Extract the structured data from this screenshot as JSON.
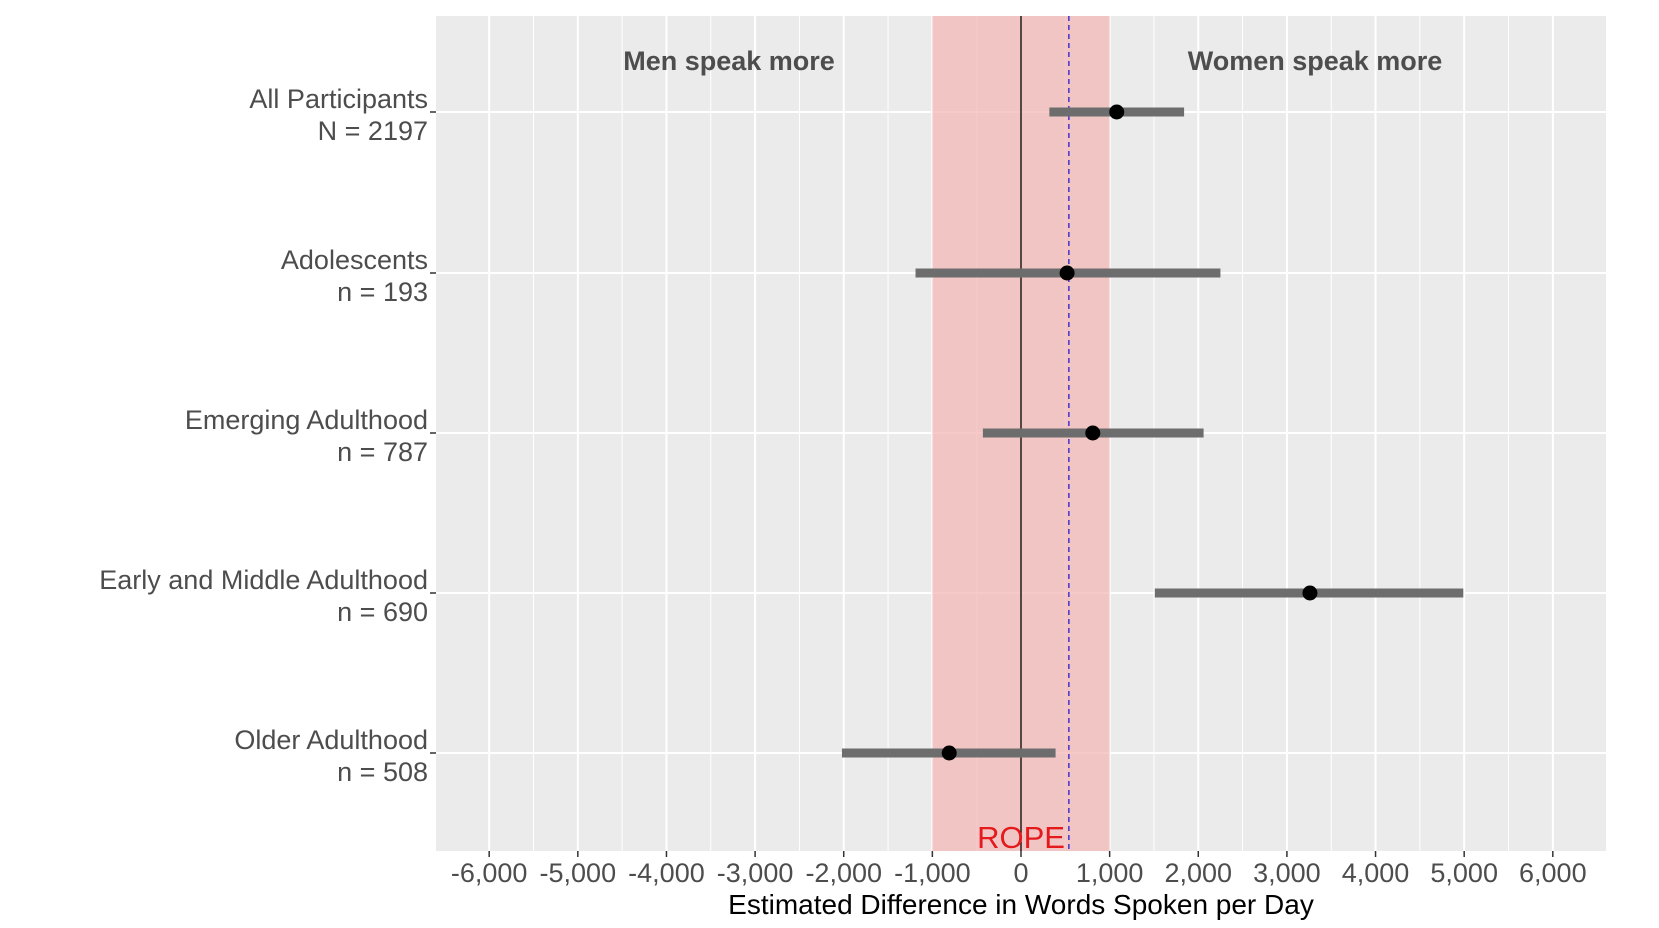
{
  "chart_data": {
    "type": "forest",
    "xlabel": "Estimated Difference in Words Spoken per Day",
    "xlim": [
      -6600,
      6600
    ],
    "xticks": [
      -6000,
      -5000,
      -4000,
      -3000,
      -2000,
      -1000,
      0,
      1000,
      2000,
      3000,
      4000,
      5000,
      6000
    ],
    "xtick_labels": [
      "-6,000",
      "-5,000",
      "-4,000",
      "-3,000",
      "-2,000",
      "-1,000",
      "0",
      "1,000",
      "2,000",
      "3,000",
      "4,000",
      "5,000",
      "6,000"
    ],
    "grid": true,
    "rope": {
      "label": "ROPE",
      "lower": -1000,
      "upper": 1000,
      "color": "#f4b6b6"
    },
    "reference_line": 0,
    "dashed_line": 540,
    "annotations": {
      "left": "Men speak more",
      "right": "Women speak more"
    },
    "categories": [
      {
        "label": "All Participants",
        "sublabel": "N = 2197",
        "estimate": 1080,
        "lower": 320,
        "upper": 1840
      },
      {
        "label": "Adolescents",
        "sublabel": "n = 193",
        "estimate": 520,
        "lower": -1190,
        "upper": 2250
      },
      {
        "label": "Emerging Adulthood",
        "sublabel": "n = 787",
        "estimate": 810,
        "lower": -430,
        "upper": 2060
      },
      {
        "label": "Early and Middle Adulthood",
        "sublabel": "n = 690",
        "estimate": 3260,
        "lower": 1510,
        "upper": 4990
      },
      {
        "label": "Older Adulthood",
        "sublabel": "n = 508",
        "estimate": -810,
        "lower": -2020,
        "upper": 390
      }
    ],
    "colors": {
      "panel": "#ebebeb",
      "grid": "#ffffff",
      "interval": "#6d6d6d",
      "point": "#000000",
      "dashed": "#4b3cd0"
    }
  }
}
